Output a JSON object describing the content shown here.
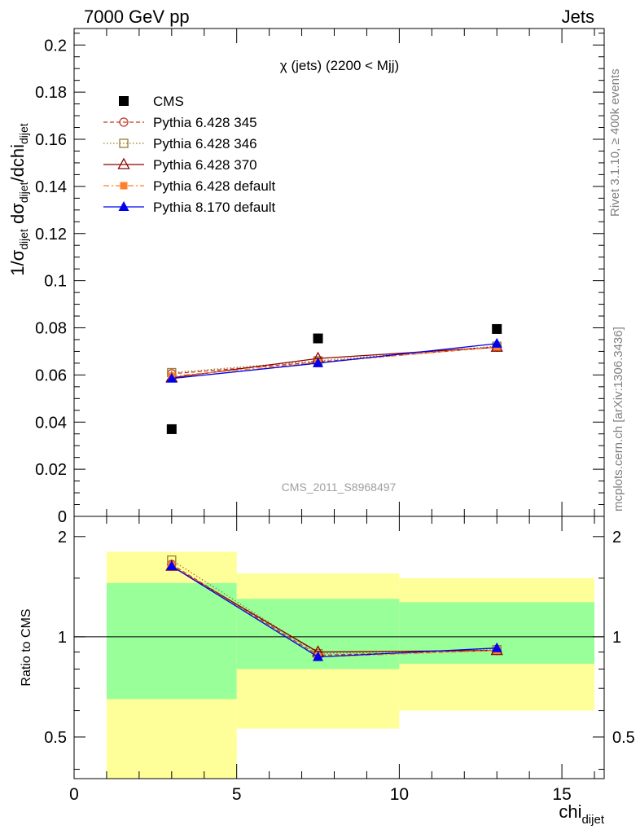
{
  "header": {
    "left": "7000 GeV pp",
    "right": "Jets"
  },
  "side": {
    "rivet": "Rivet 3.1.10, ≥ 400k events",
    "mcplots": "mcplots.cern.ch [arXiv:1306.3436]"
  },
  "colors": {
    "cms": "#000000",
    "p345": "#c0392b",
    "p346": "#9a7d2e",
    "p370": "#8b0000",
    "p6def": "#ff7f2a",
    "p8def": "#0000ee",
    "band_outer": "#ffff99",
    "band_inner": "#99ff99"
  },
  "chart_data": [
    {
      "type": "line",
      "title": "χ (jets) (2200 < Mjj)",
      "watermark": "CMS_2011_S8968497",
      "ylabel": {
        "main": "1/σ",
        "sub1": "dijet",
        "mid": " dσ",
        "sub2": "dijet",
        "end": "/dchi",
        "sub3": "dijet"
      },
      "xlim": [
        0,
        16.3
      ],
      "ylim": [
        0,
        0.207
      ],
      "yticks": [
        0,
        0.02,
        0.04,
        0.06,
        0.08,
        0.1,
        0.12,
        0.14,
        0.16,
        0.18,
        0.2
      ],
      "ytick_labels": [
        "0",
        "0.02",
        "0.04",
        "0.06",
        "0.08",
        "0.1",
        "0.12",
        "0.14",
        "0.16",
        "0.18",
        "0.2"
      ],
      "x": [
        3,
        7.5,
        13
      ],
      "series": [
        {
          "name": "CMS",
          "key": "cms",
          "marker": "square",
          "line": "none",
          "values": [
            0.037,
            0.0755,
            0.0795
          ]
        },
        {
          "name": "Pythia 6.428 345",
          "key": "p345",
          "marker": "circle-open",
          "line": "dashed",
          "values": [
            0.0605,
            0.0655,
            0.0718
          ]
        },
        {
          "name": "Pythia 6.428 346",
          "key": "p346",
          "marker": "square-open",
          "line": "dotted",
          "values": [
            0.061,
            0.066,
            0.0722
          ]
        },
        {
          "name": "Pythia 6.428 370",
          "key": "p370",
          "marker": "triangle-open",
          "line": "solid",
          "values": [
            0.0588,
            0.067,
            0.0718
          ]
        },
        {
          "name": "Pythia 6.428 default",
          "key": "p6def",
          "marker": "square-small",
          "line": "dashdot",
          "values": [
            0.0595,
            0.0652,
            0.072
          ]
        },
        {
          "name": "Pythia 8.170 default",
          "key": "p8def",
          "marker": "triangle",
          "line": "solid",
          "values": [
            0.0585,
            0.065,
            0.0733
          ]
        }
      ]
    },
    {
      "type": "line",
      "ylabel": "Ratio to CMS",
      "xlabel": {
        "main": "chi",
        "sub": "dijet"
      },
      "ylim": [
        0.375,
        2.3
      ],
      "yscale": "log",
      "ytick_labels": [
        "0.5",
        "1",
        "2"
      ],
      "yticks": [
        0.5,
        1,
        2
      ],
      "xticks": [
        0,
        5,
        10,
        15
      ],
      "xtick_labels": [
        "0",
        "5",
        "10",
        "15"
      ],
      "bands": [
        {
          "x": [
            1,
            5
          ],
          "outer": [
            0.35,
            1.8
          ],
          "inner": [
            0.65,
            1.45
          ]
        },
        {
          "x": [
            5,
            10
          ],
          "outer": [
            0.53,
            1.55
          ],
          "inner": [
            0.8,
            1.3
          ]
        },
        {
          "x": [
            10,
            16
          ],
          "outer": [
            0.6,
            1.5
          ],
          "inner": [
            0.83,
            1.27
          ]
        }
      ],
      "x": [
        3,
        7.5,
        13
      ],
      "series": [
        {
          "name": "Pythia 6.428 345",
          "key": "p345",
          "marker": "circle-open",
          "line": "dashed",
          "values": [
            1.65,
            0.88,
            0.91
          ]
        },
        {
          "name": "Pythia 6.428 346",
          "key": "p346",
          "marker": "square-open",
          "line": "dotted",
          "values": [
            1.7,
            0.89,
            0.915
          ]
        },
        {
          "name": "Pythia 6.428 370",
          "key": "p370",
          "marker": "triangle-open",
          "line": "solid",
          "values": [
            1.63,
            0.9,
            0.91
          ]
        },
        {
          "name": "Pythia 6.428 default",
          "key": "p6def",
          "marker": "square-small",
          "line": "dashdot",
          "values": [
            1.64,
            0.87,
            0.91
          ]
        },
        {
          "name": "Pythia 8.170 default",
          "key": "p8def",
          "marker": "triangle",
          "line": "solid",
          "values": [
            1.63,
            0.87,
            0.925
          ]
        }
      ]
    }
  ]
}
